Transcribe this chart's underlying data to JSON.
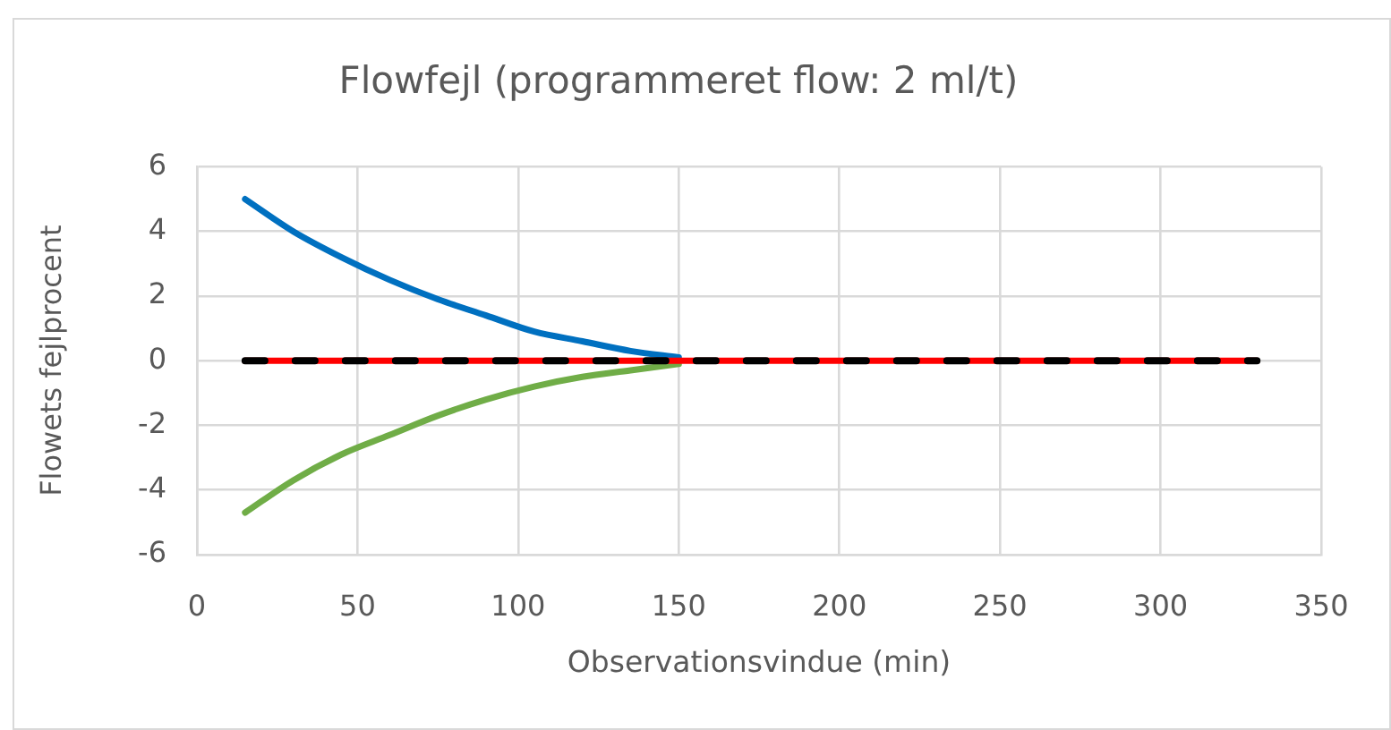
{
  "chart_data": {
    "type": "line",
    "title": "Flowfejl (programmeret flow: 2 ml/t)",
    "xlabel": "Observationsvindue (min)",
    "ylabel": "Flowets fejlprocent",
    "xlim": [
      0,
      350
    ],
    "xticks": [
      0,
      50,
      100,
      150,
      200,
      250,
      300,
      350
    ],
    "ylim": [
      -6,
      6
    ],
    "yticks": [
      -6,
      -4,
      -2,
      0,
      2,
      4,
      6
    ],
    "grid": true,
    "series": [
      {
        "color": "#0070c0",
        "x": [
          15,
          30,
          45,
          60,
          75,
          90,
          105,
          120,
          135,
          150
        ],
        "values": [
          5.0,
          4.0,
          3.2,
          2.5,
          1.9,
          1.4,
          0.9,
          0.6,
          0.3,
          0.1
        ]
      },
      {
        "color": "#70ad47",
        "x": [
          15,
          30,
          45,
          60,
          75,
          90,
          105,
          120,
          135,
          150
        ],
        "values": [
          -4.7,
          -3.7,
          -2.9,
          -2.3,
          -1.7,
          -1.2,
          -0.8,
          -0.5,
          -0.3,
          -0.1
        ]
      },
      {
        "color": "#ff0000",
        "x": [
          15,
          330
        ],
        "values": [
          0,
          0
        ]
      },
      {
        "color": "#000000",
        "x": [
          15,
          330
        ],
        "values": [
          0,
          0
        ],
        "line_style": "dashed"
      }
    ]
  }
}
